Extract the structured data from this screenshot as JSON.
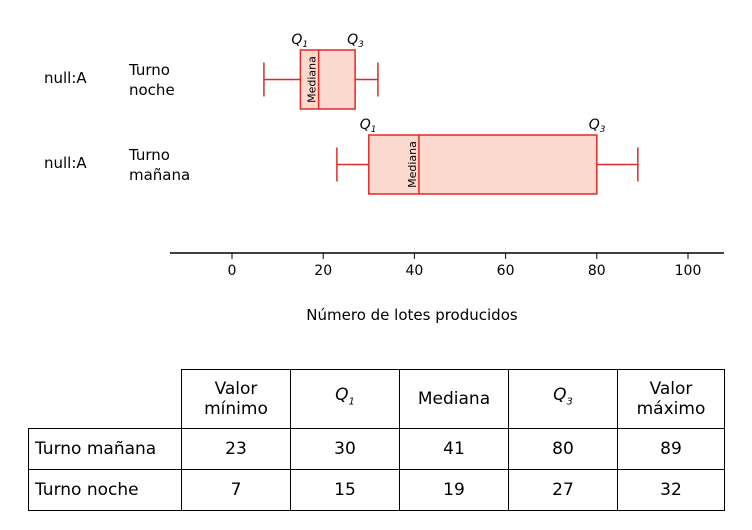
{
  "chart_data": {
    "type": "boxplot",
    "xlabel": "Número de lotes producidos",
    "xlim": [
      -14,
      108
    ],
    "xticks": [
      0,
      20,
      40,
      60,
      80,
      100
    ],
    "marker_labels": {
      "q1": "Q",
      "q1_sub": "1",
      "q3": "Q",
      "q3_sub": "3",
      "median": "Mediana"
    },
    "box_color": "#fbd9ce",
    "line_color": "#e02a2a",
    "series": [
      {
        "tag": "null:A",
        "label_line1": "Turno",
        "label_line2": "noche",
        "min": 7,
        "q1": 15,
        "median": 19,
        "q3": 27,
        "max": 32
      },
      {
        "tag": "null:A",
        "label_line1": "Turno",
        "label_line2": "mañana",
        "min": 23,
        "q1": 30,
        "median": 41,
        "q3": 80,
        "max": 89
      }
    ]
  },
  "table": {
    "headers": {
      "min_line1": "Valor",
      "min_line2": "mínimo",
      "q1": "Q",
      "q1_sub": "1",
      "median": "Mediana",
      "q3": "Q",
      "q3_sub": "3",
      "max_line1": "Valor",
      "max_line2": "máximo"
    },
    "rows": [
      {
        "label": "Turno mañana",
        "min": "23",
        "q1": "30",
        "median": "41",
        "q3": "80",
        "max": "89"
      },
      {
        "label": "Turno noche",
        "min": "7",
        "q1": "15",
        "median": "19",
        "q3": "27",
        "max": "32"
      }
    ]
  }
}
